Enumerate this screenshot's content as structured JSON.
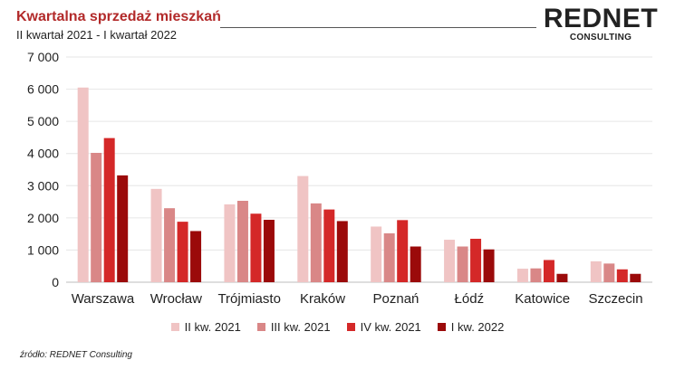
{
  "header": {
    "title": "Kwartalna sprzedaż mieszkań",
    "subtitle": "II kwartał 2021 - I kwartał 2022"
  },
  "logo": {
    "main": "REDNET",
    "sub": "CONSULTING"
  },
  "source": "źródło: REDNET Consulting",
  "chart_data": {
    "type": "bar",
    "title": "Kwartalna sprzedaż mieszkań",
    "subtitle": "II kwartał 2021 - I kwartał 2022",
    "categories": [
      "Warszawa",
      "Wrocław",
      "Trójmiasto",
      "Kraków",
      "Poznań",
      "Łódź",
      "Katowice",
      "Szczecin"
    ],
    "series": [
      {
        "name": "II kw. 2021",
        "color": "#f0c4c4",
        "values": [
          6050,
          2900,
          2420,
          3300,
          1730,
          1320,
          420,
          650
        ]
      },
      {
        "name": "III kw. 2021",
        "color": "#d98787",
        "values": [
          4020,
          2300,
          2530,
          2450,
          1520,
          1110,
          430,
          580
        ]
      },
      {
        "name": "IV kw. 2021",
        "color": "#d42828",
        "values": [
          4480,
          1880,
          2130,
          2260,
          1930,
          1350,
          690,
          400
        ]
      },
      {
        "name": "I kw. 2022",
        "color": "#9b0a0a",
        "values": [
          3320,
          1590,
          1940,
          1900,
          1110,
          1020,
          260,
          260
        ]
      }
    ],
    "yticks": [
      "0",
      "1 000",
      "2 000",
      "3 000",
      "4 000",
      "5 000",
      "6 000",
      "7 000"
    ],
    "ylim": [
      0,
      7000
    ],
    "grid": true,
    "legend": "bottom"
  }
}
